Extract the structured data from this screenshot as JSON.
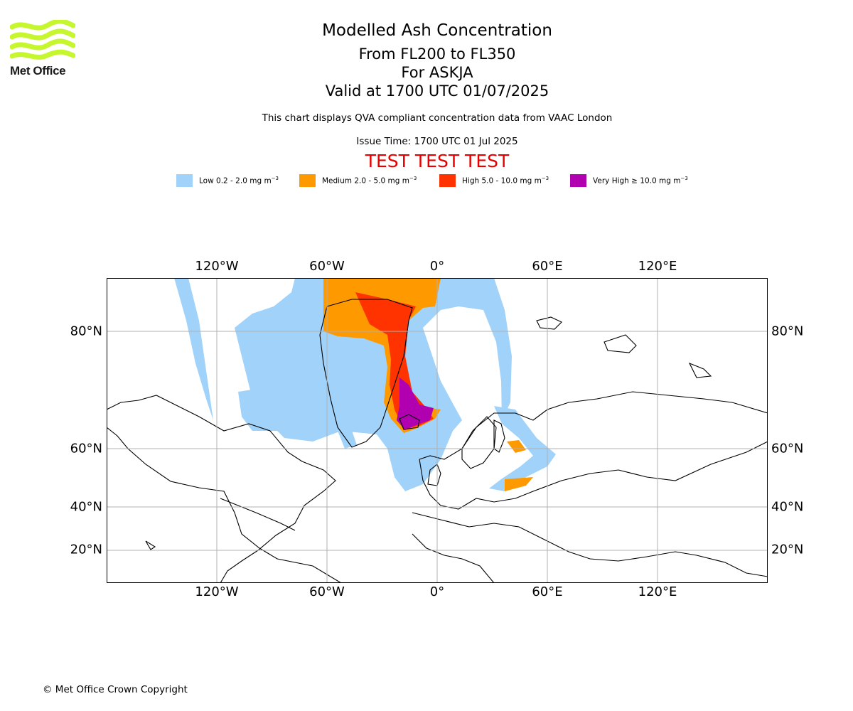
{
  "logo": {
    "text": "Met Office",
    "color": "#c6f72e"
  },
  "header": {
    "title": "Modelled Ash Concentration",
    "levels": "From FL200 to FL350",
    "volcano": "For ASKJA",
    "valid": "Valid at 1700 UTC 01/07/2025",
    "note": "This chart displays QVA compliant concentration data from VAAC London",
    "issue_time": "Issue Time: 1700 UTC 01 Jul 2025",
    "test_banner": "TEST TEST TEST"
  },
  "legend": [
    {
      "label": "Low 0.2 - 2.0 mg m",
      "color": "#a0d2fa"
    },
    {
      "label": "Medium 2.0 - 5.0 mg m",
      "color": "#ff9900"
    },
    {
      "label": "High 5.0 - 10.0 mg m",
      "color": "#ff3300"
    },
    {
      "label": "Very High ≥ 10.0 mg m",
      "color": "#b000b0"
    }
  ],
  "legend_unit_exp": "−3",
  "axes": {
    "lon_labels": [
      "120°W",
      "60°W",
      "0°",
      "60°E",
      "120°E"
    ],
    "lat_labels": [
      "80°N",
      "60°N",
      "40°N",
      "20°N"
    ]
  },
  "footer": {
    "copyright": "© Met Office Crown Copyright"
  }
}
